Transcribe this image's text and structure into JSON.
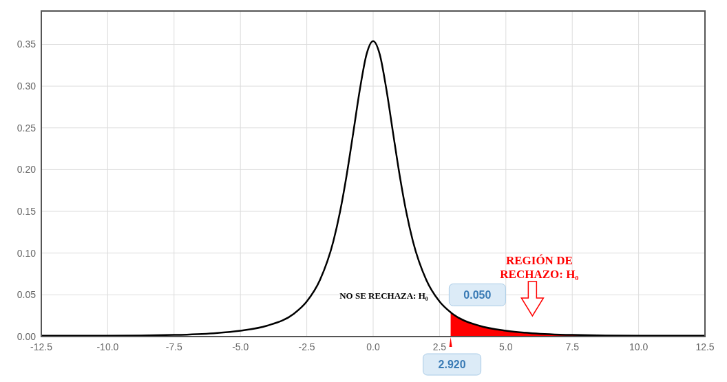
{
  "chart_data": {
    "type": "line",
    "x": [
      -12.5,
      -10,
      -7.5,
      -6,
      -5,
      -4,
      -3,
      -2.5,
      -2,
      -1.5,
      -1.25,
      -1,
      -0.75,
      -0.5,
      -0.25,
      0,
      0.25,
      0.5,
      0.75,
      1,
      1.25,
      1.5,
      2,
      2.5,
      2.92,
      3,
      4,
      5,
      6,
      7.5,
      10,
      12.5
    ],
    "series": [
      {
        "type": "area",
        "color": "#ff0000",
        "x": [
          2.92,
          3,
          4,
          5,
          6,
          7.5,
          10,
          12.5
        ],
        "values": [
          0.029,
          0.027,
          0.013,
          0.007,
          0.004,
          0.002,
          0.001,
          0.001
        ]
      },
      {
        "color": "#000000",
        "values": [
          0.001,
          0.001,
          0.002,
          0.004,
          0.007,
          0.013,
          0.027,
          0.042,
          0.068,
          0.114,
          0.149,
          0.193,
          0.244,
          0.296,
          0.338,
          0.354,
          0.338,
          0.296,
          0.244,
          0.193,
          0.149,
          0.114,
          0.068,
          0.042,
          0.029,
          0.027,
          0.013,
          0.007,
          0.004,
          0.002,
          0.001,
          0.001
        ]
      }
    ],
    "xlim": [
      -12.5,
      12.5
    ],
    "xticks": [
      -12.5,
      {
        "value": -10,
        "label": "-10.0"
      },
      -7.5,
      {
        "value": -5,
        "label": "-5.0"
      },
      -2.5,
      {
        "value": 0,
        "label": "0.0"
      },
      2.5,
      {
        "value": 5,
        "label": "5.0"
      },
      7.5,
      {
        "value": 10,
        "label": "10.0"
      },
      12.5
    ],
    "ylim": [
      0,
      0.39
    ],
    "yticks": [
      {
        "value": 0,
        "label": "0.00"
      },
      0.05,
      {
        "value": 0.1,
        "label": "0.10"
      },
      0.15,
      {
        "value": 0.2,
        "label": "0.20"
      },
      0.25,
      {
        "value": 0.3,
        "label": "0.30"
      },
      0.35
    ],
    "grid": true,
    "marker": "none",
    "annotations": [
      "NO SE RECHAZA: H₀",
      "REGIÓN DE RECHAZO: H₀",
      "0.050",
      {
        "text": "2.920",
        "x": 2.92,
        "y": 0
      }
    ]
  }
}
